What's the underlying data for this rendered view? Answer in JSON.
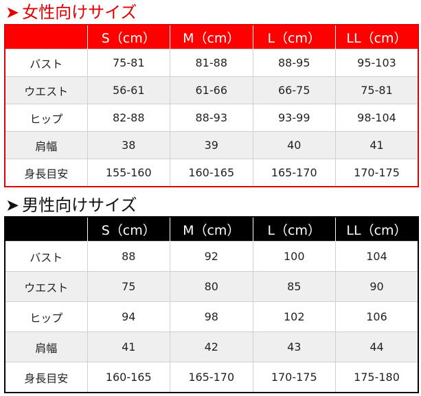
{
  "women": {
    "title": "女性向けサイズ",
    "arrow": "➤",
    "headers": [
      "",
      "S（cm）",
      "M（cm）",
      "L（cm）",
      "LL（cm）"
    ],
    "rows": [
      [
        "バスト",
        "75-81",
        "81-88",
        "88-95",
        "95-103"
      ],
      [
        "ウエスト",
        "56-61",
        "61-66",
        "66-75",
        "75-81"
      ],
      [
        "ヒップ",
        "82-88",
        "88-93",
        "93-99",
        "98-104"
      ],
      [
        "肩幅",
        "38",
        "39",
        "40",
        "41"
      ],
      [
        "身長目安",
        "155-160",
        "160-165",
        "165-170",
        "170-175"
      ]
    ],
    "accent_color": "#ff0000"
  },
  "men": {
    "title": "男性向けサイズ",
    "arrow": "➤",
    "headers": [
      "",
      "S（cm）",
      "M（cm）",
      "L（cm）",
      "LL（cm）"
    ],
    "rows": [
      [
        "バスト",
        "88",
        "92",
        "100",
        "104"
      ],
      [
        "ウエスト",
        "75",
        "80",
        "85",
        "90"
      ],
      [
        "ヒップ",
        "94",
        "98",
        "102",
        "106"
      ],
      [
        "肩幅",
        "41",
        "42",
        "43",
        "44"
      ],
      [
        "身長目安",
        "160-165",
        "165-170",
        "170-175",
        "175-180"
      ]
    ],
    "accent_color": "#000000"
  }
}
